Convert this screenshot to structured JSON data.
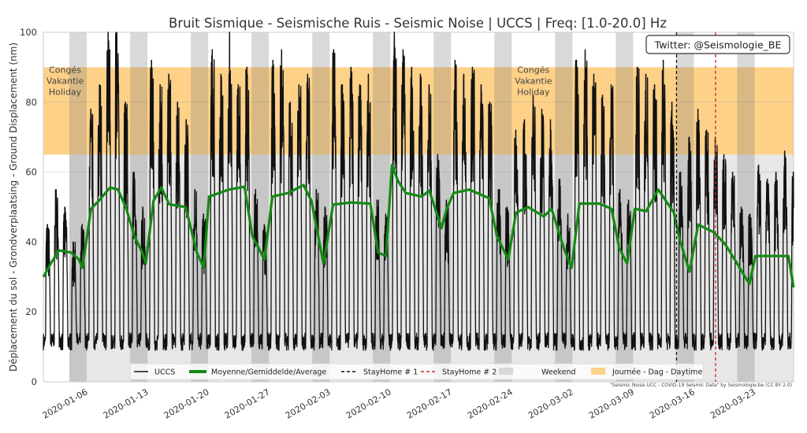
{
  "chart_data": {
    "type": "line",
    "title": "Bruit Sismique - Seismische Ruis - Seismic Noise | UCCS | Freq: [1.0-20.0] Hz",
    "ylabel": "Déplacement du sol - Grondverplaatsing - Ground Displacement (nm)",
    "xlabel": "",
    "ylim": [
      0,
      100
    ],
    "yticks": [
      "0",
      "20",
      "40",
      "60",
      "80",
      "100"
    ],
    "x_start_date": "2020-01-01",
    "x_range_days": [
      0,
      86.5
    ],
    "xticks": [
      {
        "day": 5,
        "label": "2020-01-06"
      },
      {
        "day": 12,
        "label": "2020-01-13"
      },
      {
        "day": 19,
        "label": "2020-01-20"
      },
      {
        "day": 26,
        "label": "2020-01-27"
      },
      {
        "day": 33,
        "label": "2020-02-03"
      },
      {
        "day": 40,
        "label": "2020-02-10"
      },
      {
        "day": 47,
        "label": "2020-02-17"
      },
      {
        "day": 54,
        "label": "2020-02-24"
      },
      {
        "day": 61,
        "label": "2020-03-02"
      },
      {
        "day": 68,
        "label": "2020-03-09"
      },
      {
        "day": 75,
        "label": "2020-03-16"
      },
      {
        "day": 82,
        "label": "2020-03-23"
      }
    ],
    "daytime_band": [
      65,
      90
    ],
    "holiday_label": [
      "Congés",
      "Vakantie",
      "Holiday"
    ],
    "holiday_label_days": [
      2.5,
      56.5
    ],
    "stayhome_days": [
      73,
      77.5
    ],
    "series": [
      {
        "name": "UCCS",
        "color": "#111111",
        "night_level": 12,
        "daily_peak": [
          45,
          55,
          50,
          40,
          45,
          78,
          85,
          100,
          100,
          80,
          60,
          50,
          92,
          85,
          88,
          80,
          75,
          55,
          48,
          95,
          88,
          100,
          85,
          90,
          55,
          45,
          92,
          95,
          80,
          85,
          88,
          55,
          50,
          95,
          85,
          90,
          85,
          88,
          52,
          48,
          100,
          95,
          90,
          88,
          85,
          65,
          52,
          92,
          88,
          90,
          85,
          80,
          55,
          50,
          72,
          75,
          82,
          78,
          75,
          58,
          48,
          92,
          95,
          88,
          82,
          85,
          55,
          52,
          90,
          88,
          85,
          92,
          80,
          60,
          70,
          78,
          72,
          70,
          65,
          60,
          50,
          48,
          62,
          58,
          60,
          66,
          60
        ]
      },
      {
        "name": "Moyenne/Gemiddelde/Average",
        "color": "#138a13",
        "points": [
          [
            0,
            30
          ],
          [
            0.9,
            34
          ],
          [
            1.8,
            37.6
          ],
          [
            3.2,
            37
          ],
          [
            4.1,
            35
          ],
          [
            4.5,
            32.6
          ],
          [
            5.5,
            49.5
          ],
          [
            6.4,
            51.8
          ],
          [
            7.7,
            55.6
          ],
          [
            8.6,
            55
          ],
          [
            9.5,
            50
          ],
          [
            10.5,
            41.7
          ],
          [
            11.4,
            37
          ],
          [
            11.8,
            33.8
          ],
          [
            12.7,
            51.8
          ],
          [
            13.6,
            55.6
          ],
          [
            14.5,
            50.8
          ],
          [
            16.4,
            50
          ],
          [
            17.7,
            37
          ],
          [
            18.5,
            32.6
          ],
          [
            19.1,
            53
          ],
          [
            21.4,
            55
          ],
          [
            23.2,
            55.8
          ],
          [
            24.1,
            41.7
          ],
          [
            25.5,
            35
          ],
          [
            26.4,
            53
          ],
          [
            28.2,
            54
          ],
          [
            30,
            56.3
          ],
          [
            30.9,
            51.8
          ],
          [
            32.3,
            33.8
          ],
          [
            33.4,
            50.7
          ],
          [
            35.5,
            51.3
          ],
          [
            37.7,
            51
          ],
          [
            38.6,
            37
          ],
          [
            39.5,
            36
          ],
          [
            40.2,
            62
          ],
          [
            40.9,
            57.4
          ],
          [
            41.8,
            54
          ],
          [
            43.6,
            53
          ],
          [
            44.5,
            54.7
          ],
          [
            45.9,
            44
          ],
          [
            46.5,
            49.5
          ],
          [
            47.3,
            54
          ],
          [
            49.1,
            55
          ],
          [
            51.4,
            52.5
          ],
          [
            52.3,
            41.7
          ],
          [
            53.6,
            35
          ],
          [
            54.5,
            48.4
          ],
          [
            55.9,
            50
          ],
          [
            57.7,
            47.3
          ],
          [
            58.6,
            49.5
          ],
          [
            60,
            38.3
          ],
          [
            60.9,
            32.6
          ],
          [
            61.8,
            51
          ],
          [
            64.1,
            51
          ],
          [
            65.5,
            49.5
          ],
          [
            66.4,
            38.3
          ],
          [
            67.3,
            33.8
          ],
          [
            68.2,
            49.5
          ],
          [
            69.5,
            48.8
          ],
          [
            70.9,
            55
          ],
          [
            72.7,
            48.4
          ],
          [
            73.4,
            40.5
          ],
          [
            74.5,
            31.5
          ],
          [
            75.5,
            45
          ],
          [
            77.3,
            42.8
          ],
          [
            78.6,
            39.4
          ],
          [
            80,
            33.8
          ],
          [
            81.4,
            28
          ],
          [
            82.1,
            36
          ],
          [
            83.6,
            36
          ],
          [
            85.9,
            36
          ],
          [
            86.5,
            27
          ]
        ]
      }
    ],
    "legend": {
      "placement": "bottom-center",
      "entries": [
        "UCCS",
        "Moyenne/Gemiddelde/Average",
        "StayHome # 1",
        "StayHome # 2",
        "Weekend",
        "Journée - Dag - Daytime"
      ]
    },
    "annotation_twitter": "Twitter: @Seismologie_BE",
    "credit": "\"Seismic Noise UCC - COVID-19 Seismic Data\" by Seismologie.be (CC BY 2.0)",
    "colors": {
      "daytime": "#fed189",
      "weekend": "#d4d4d4",
      "low_band": "#e7e7e7",
      "stayhome1": "#111111",
      "stayhome2": "#d62728"
    }
  }
}
